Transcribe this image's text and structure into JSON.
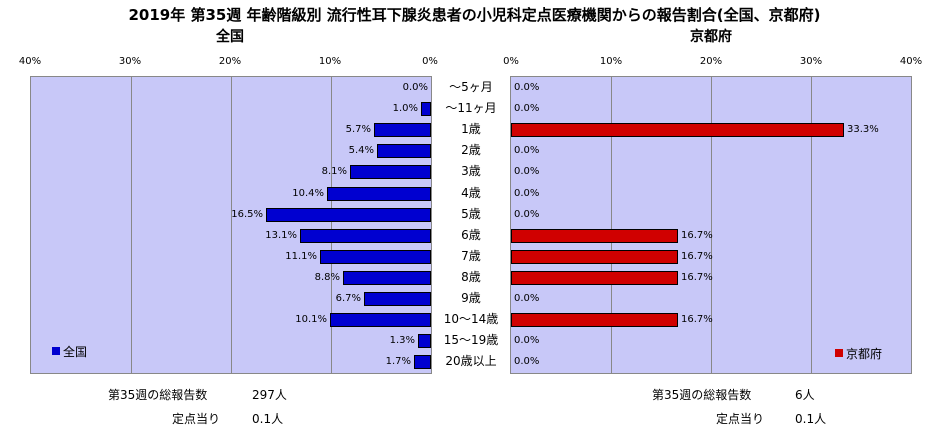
{
  "chart_data": {
    "type": "bar",
    "title": "2019年 第35週 年齢階級別 流行性耳下腺炎患者の小児科定点医療機関からの報告割合(全国、京都府)",
    "categories": [
      "～5ヶ月",
      "～11ヶ月",
      "1歳",
      "2歳",
      "3歳",
      "4歳",
      "5歳",
      "6歳",
      "7歳",
      "8歳",
      "9歳",
      "10～14歳",
      "15～19歳",
      "20歳以上"
    ],
    "xlim": [
      0,
      40
    ],
    "ticks": [
      "40%",
      "30%",
      "20%",
      "10%",
      "0%",
      "0%",
      "10%",
      "20%",
      "30%",
      "40%"
    ],
    "series": [
      {
        "name": "全国",
        "panel_title": "全国",
        "color": "#0000d0",
        "values": [
          0.0,
          1.0,
          5.7,
          5.4,
          8.1,
          10.4,
          16.5,
          13.1,
          11.1,
          8.8,
          6.7,
          10.1,
          1.3,
          1.7
        ],
        "labels": [
          "0.0%",
          "1.0%",
          "5.7%",
          "5.4%",
          "8.1%",
          "10.4%",
          "16.5%",
          "13.1%",
          "11.1%",
          "8.8%",
          "6.7%",
          "10.1%",
          "1.3%",
          "1.7%"
        ],
        "legend_position": "bottom-left"
      },
      {
        "name": "京都府",
        "panel_title": "京都府",
        "color": "#d00000",
        "values": [
          0.0,
          0.0,
          33.3,
          0.0,
          0.0,
          0.0,
          0.0,
          16.7,
          16.7,
          16.7,
          0.0,
          16.7,
          0.0,
          0.0
        ],
        "labels": [
          "0.0%",
          "0.0%",
          "33.3%",
          "0.0%",
          "0.0%",
          "0.0%",
          "0.0%",
          "16.7%",
          "16.7%",
          "16.7%",
          "0.0%",
          "16.7%",
          "0.0%",
          "0.0%"
        ],
        "legend_position": "bottom-right"
      }
    ],
    "grid": true
  },
  "footer": {
    "national_total_label": "第35週の総報告数",
    "national_total_value": "297人",
    "national_per_label": "定点当り",
    "national_per_value": "0.1人",
    "kyoto_total_label": "第35週の総報告数",
    "kyoto_total_value": "6人",
    "kyoto_per_label": "定点当り",
    "kyoto_per_value": "0.1人"
  }
}
